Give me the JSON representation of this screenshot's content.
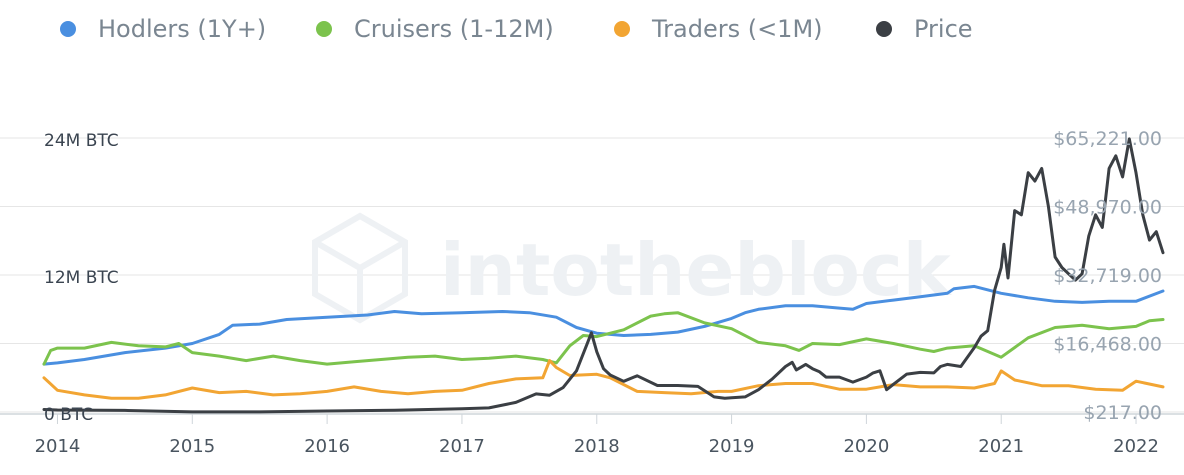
{
  "watermark": "intotheblock",
  "colors": {
    "hodlers": "#4a8fe0",
    "cruisers": "#7cc34d",
    "traders": "#f2a533",
    "price": "#3b3f44",
    "grid": "#e6e6e6"
  },
  "chart_data": {
    "type": "line",
    "legend_position": "top",
    "grid": true,
    "x_range": [
      2013.9,
      2022.2
    ],
    "x_ticks": [
      "2014",
      "2015",
      "2016",
      "2017",
      "2018",
      "2019",
      "2020",
      "2021",
      "2022"
    ],
    "y_left": {
      "unit": "BTC",
      "range": [
        0,
        24000000
      ],
      "tick_labels": [
        "24M BTC",
        "12M BTC",
        "0 BTC"
      ]
    },
    "y_right": {
      "unit": "USD",
      "range": [
        217,
        65221
      ],
      "tick_labels": [
        "$65,221.00",
        "$48,970.00",
        "$32,719.00",
        "$16,468.00",
        "$217.00"
      ]
    },
    "series": [
      {
        "name": "Hodlers (1Y+)",
        "axis": "left",
        "color": "#4a8fe0",
        "x": [
          2013.9,
          2014.0,
          2014.2,
          2014.5,
          2014.8,
          2015.0,
          2015.2,
          2015.3,
          2015.5,
          2015.7,
          2016.0,
          2016.3,
          2016.5,
          2016.7,
          2017.0,
          2017.3,
          2017.5,
          2017.7,
          2017.85,
          2018.0,
          2018.2,
          2018.4,
          2018.6,
          2018.8,
          2019.0,
          2019.1,
          2019.2,
          2019.4,
          2019.6,
          2019.8,
          2019.9,
          2020.0,
          2020.2,
          2020.4,
          2020.6,
          2020.65,
          2020.8,
          2021.0,
          2021.2,
          2021.4,
          2021.6,
          2021.8,
          2022.0,
          2022.2
        ],
        "values": [
          4200000,
          4300000,
          4600000,
          5200000,
          5600000,
          6000000,
          6800000,
          7600000,
          7700000,
          8100000,
          8300000,
          8500000,
          8800000,
          8600000,
          8700000,
          8800000,
          8700000,
          8300000,
          7400000,
          6900000,
          6700000,
          6800000,
          7000000,
          7500000,
          8200000,
          8700000,
          9000000,
          9300000,
          9300000,
          9100000,
          9000000,
          9500000,
          9800000,
          10100000,
          10400000,
          10800000,
          11000000,
          10400000,
          10000000,
          9700000,
          9600000,
          9700000,
          9700000,
          10600000
        ]
      },
      {
        "name": "Cruisers (1-12M)",
        "axis": "left",
        "color": "#7cc34d",
        "x": [
          2013.9,
          2013.95,
          2014.0,
          2014.2,
          2014.4,
          2014.6,
          2014.8,
          2014.9,
          2015.0,
          2015.2,
          2015.4,
          2015.6,
          2015.8,
          2016.0,
          2016.2,
          2016.4,
          2016.6,
          2016.8,
          2017.0,
          2017.2,
          2017.4,
          2017.6,
          2017.7,
          2017.8,
          2017.9,
          2018.0,
          2018.2,
          2018.4,
          2018.5,
          2018.6,
          2018.8,
          2019.0,
          2019.2,
          2019.4,
          2019.5,
          2019.6,
          2019.8,
          2020.0,
          2020.2,
          2020.4,
          2020.5,
          2020.6,
          2020.8,
          2021.0,
          2021.2,
          2021.4,
          2021.6,
          2021.8,
          2022.0,
          2022.1,
          2022.2
        ],
        "values": [
          4200000,
          5400000,
          5600000,
          5600000,
          6100000,
          5800000,
          5700000,
          6000000,
          5200000,
          4900000,
          4500000,
          4900000,
          4500000,
          4200000,
          4400000,
          4600000,
          4800000,
          4900000,
          4600000,
          4700000,
          4900000,
          4600000,
          4300000,
          5800000,
          6700000,
          6600000,
          7200000,
          8400000,
          8600000,
          8700000,
          7800000,
          7300000,
          6100000,
          5800000,
          5400000,
          6000000,
          5900000,
          6400000,
          6000000,
          5500000,
          5300000,
          5600000,
          5800000,
          4800000,
          6500000,
          7400000,
          7600000,
          7300000,
          7500000,
          8000000,
          8100000
        ]
      },
      {
        "name": "Traders (<1M)",
        "axis": "left",
        "color": "#f2a533",
        "x": [
          2013.9,
          2014.0,
          2014.2,
          2014.4,
          2014.6,
          2014.8,
          2015.0,
          2015.2,
          2015.4,
          2015.6,
          2015.8,
          2016.0,
          2016.2,
          2016.4,
          2016.6,
          2016.8,
          2017.0,
          2017.2,
          2017.4,
          2017.6,
          2017.65,
          2017.7,
          2017.8,
          2018.0,
          2018.1,
          2018.3,
          2018.5,
          2018.7,
          2018.9,
          2019.0,
          2019.2,
          2019.4,
          2019.6,
          2019.8,
          2020.0,
          2020.2,
          2020.4,
          2020.6,
          2020.8,
          2020.95,
          2021.0,
          2021.1,
          2021.3,
          2021.5,
          2021.7,
          2021.9,
          2022.0,
          2022.2
        ],
        "values": [
          3000000,
          1900000,
          1500000,
          1200000,
          1200000,
          1500000,
          2100000,
          1700000,
          1800000,
          1500000,
          1600000,
          1800000,
          2200000,
          1800000,
          1600000,
          1800000,
          1900000,
          2500000,
          2900000,
          3000000,
          4500000,
          3900000,
          3200000,
          3300000,
          3000000,
          1800000,
          1700000,
          1600000,
          1800000,
          1800000,
          2300000,
          2500000,
          2500000,
          2000000,
          2000000,
          2400000,
          2200000,
          2200000,
          2100000,
          2500000,
          3600000,
          2800000,
          2300000,
          2300000,
          2000000,
          1900000,
          2700000,
          2200000
        ]
      },
      {
        "name": "Price",
        "axis": "right",
        "color": "#3b3f44",
        "x": [
          2013.9,
          2014.0,
          2014.5,
          2015.0,
          2015.5,
          2016.0,
          2016.5,
          2017.0,
          2017.2,
          2017.4,
          2017.55,
          2017.65,
          2017.75,
          2017.85,
          2017.93,
          2017.96,
          2018.0,
          2018.05,
          2018.1,
          2018.2,
          2018.3,
          2018.45,
          2018.6,
          2018.75,
          2018.87,
          2018.95,
          2019.0,
          2019.1,
          2019.2,
          2019.3,
          2019.4,
          2019.45,
          2019.48,
          2019.55,
          2019.6,
          2019.65,
          2019.7,
          2019.8,
          2019.9,
          2020.0,
          2020.05,
          2020.1,
          2020.15,
          2020.2,
          2020.3,
          2020.4,
          2020.5,
          2020.55,
          2020.6,
          2020.7,
          2020.8,
          2020.85,
          2020.9,
          2020.95,
          2021.0,
          2021.02,
          2021.05,
          2021.1,
          2021.15,
          2021.2,
          2021.25,
          2021.3,
          2021.35,
          2021.4,
          2021.45,
          2021.5,
          2021.55,
          2021.6,
          2021.65,
          2021.7,
          2021.75,
          2021.8,
          2021.85,
          2021.9,
          2021.95,
          2022.0,
          2022.05,
          2022.1,
          2022.15,
          2022.2
        ],
        "values": [
          800,
          700,
          600,
          250,
          250,
          450,
          650,
          1000,
          1200,
          2500,
          4500,
          4200,
          6000,
          10000,
          16500,
          19000,
          14500,
          10500,
          9000,
          7500,
          8800,
          6500,
          6500,
          6300,
          3800,
          3500,
          3600,
          3800,
          5500,
          8000,
          11000,
          12000,
          10200,
          11500,
          10500,
          9800,
          8500,
          8500,
          7300,
          8500,
          9500,
          10000,
          5500,
          6800,
          9200,
          9600,
          9500,
          11000,
          11500,
          11000,
          15500,
          18200,
          19500,
          29000,
          34500,
          40000,
          32000,
          48000,
          47000,
          57000,
          55000,
          58000,
          49000,
          37000,
          34500,
          33000,
          31500,
          33000,
          42000,
          47000,
          44000,
          58000,
          61000,
          56000,
          65000,
          57000,
          47000,
          41000,
          43000,
          38000
        ]
      }
    ]
  }
}
